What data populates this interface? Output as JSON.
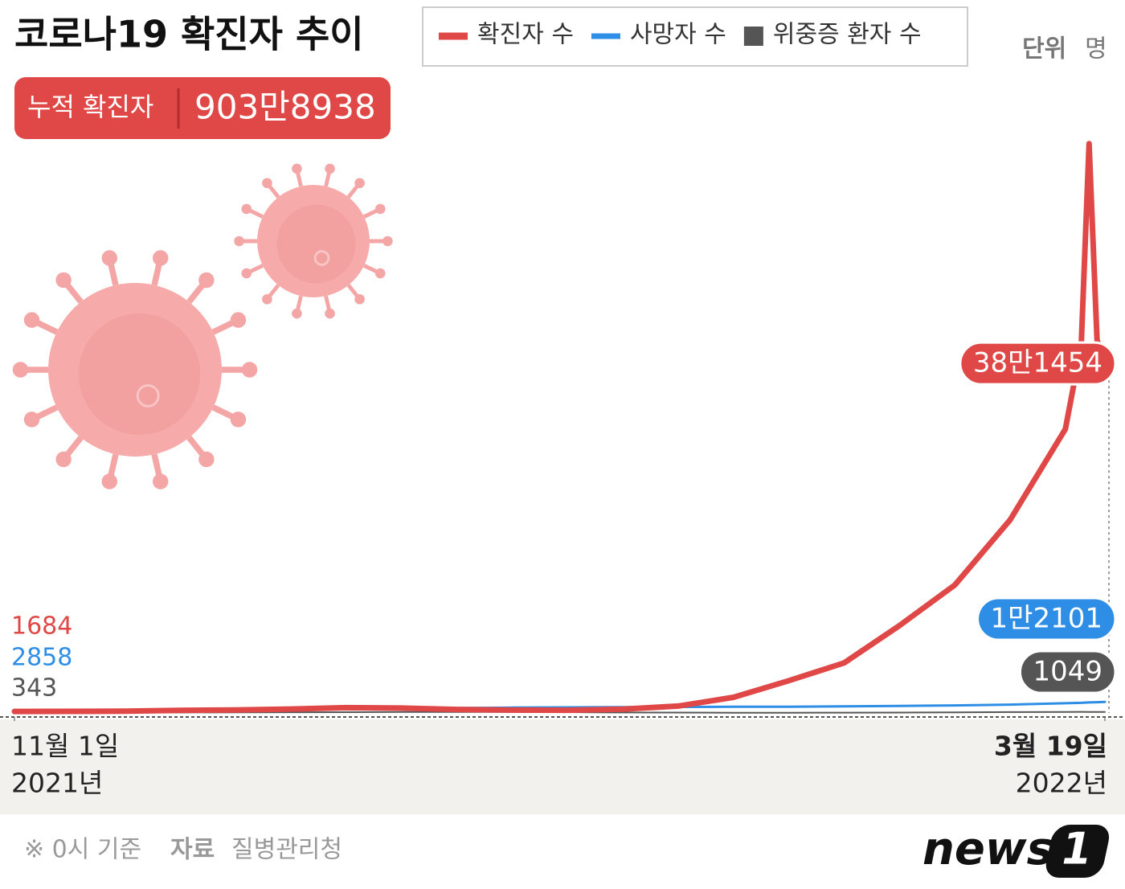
{
  "chart_data": {
    "type": "line",
    "title": "코로나19 확진자 추이",
    "cumulative_label": "누적 확진자",
    "cumulative_value": "903만8938",
    "unit_label": "단위",
    "unit": "명",
    "x": [
      "2021-11-01",
      "2021-11-08",
      "2021-11-15",
      "2021-11-22",
      "2021-11-29",
      "2021-12-06",
      "2021-12-13",
      "2021-12-20",
      "2021-12-27",
      "2022-01-03",
      "2022-01-10",
      "2022-01-17",
      "2022-01-24",
      "2022-01-31",
      "2022-02-07",
      "2022-02-14",
      "2022-02-21",
      "2022-02-28",
      "2022-03-07",
      "2022-03-14",
      "2022-03-16",
      "2022-03-17",
      "2022-03-18",
      "2022-03-19"
    ],
    "xlim": [
      "2021-11-01",
      "2022-03-19"
    ],
    "xticks": [
      {
        "value": "2021-11-01",
        "label": "11월 1일"
      },
      {
        "value": "2022-03-19",
        "label": "3월 19일"
      }
    ],
    "xtick_years": [
      "2021년",
      "2022년"
    ],
    "ylim": [
      0,
      650000
    ],
    "series": [
      {
        "name": "확진자 수",
        "color": "#e04848",
        "values": [
          1684,
          1758,
          2005,
          2826,
          3308,
          4324,
          5817,
          5318,
          3865,
          3129,
          3005,
          4194,
          7513,
          17079,
          35286,
          54619,
          95362,
          139626,
          210716,
          309790,
          400741,
          621328,
          407017,
          381454
        ],
        "value_labels": [
          "1684",
          null,
          null,
          null,
          null,
          null,
          null,
          null,
          null,
          null,
          null,
          null,
          null,
          null,
          null,
          null,
          null,
          null,
          null,
          null,
          null,
          null,
          null,
          "38만1454"
        ]
      },
      {
        "name": "사망자 수",
        "color": "#2e8ee6",
        "values": [
          2858,
          2929,
          3033,
          3298,
          3580,
          3893,
          4266,
          4776,
          5382,
          5838,
          6166,
          6378,
          6540,
          6772,
          6873,
          7202,
          7607,
          8226,
          9096,
          10595,
          11052,
          11481,
          11781,
          12101
        ],
        "value_labels": [
          "2858",
          null,
          null,
          null,
          null,
          null,
          null,
          null,
          null,
          null,
          null,
          null,
          null,
          null,
          null,
          null,
          null,
          null,
          null,
          null,
          null,
          null,
          null,
          "1만2101"
        ]
      },
      {
        "name": "위중증 환자 수",
        "color": "#555555",
        "values": [
          343,
          425,
          495,
          549,
          661,
          774,
          876,
          1025,
          1084,
          1015,
          882,
          543,
          418,
          272,
          257,
          313,
          480,
          727,
          955,
          1158,
          1196,
          1159,
          1033,
          1049
        ],
        "value_labels": [
          "343",
          null,
          null,
          null,
          null,
          null,
          null,
          null,
          null,
          null,
          null,
          null,
          null,
          null,
          null,
          null,
          null,
          null,
          null,
          null,
          null,
          null,
          null,
          "1049"
        ]
      }
    ],
    "footnote": "※ 0시 기준",
    "source_label": "자료",
    "source": "질병관리청",
    "logo": "news",
    "logo_mark": "1"
  }
}
